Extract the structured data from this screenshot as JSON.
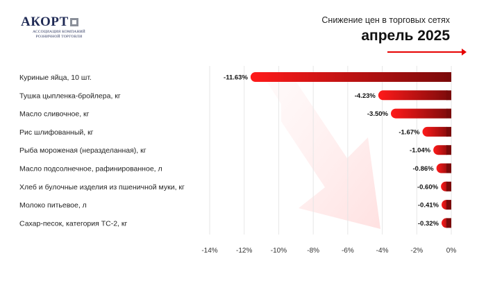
{
  "header": {
    "logo_text": "АКОРТ",
    "logo_subtitle_line1": "АССОЦИАЦИЯ КОМПАНИЙ",
    "logo_subtitle_line2": "РОЗНИЧНОЙ ТОРГОВЛИ",
    "subtitle": "Снижение цен в торговых сетях",
    "title": "апрель 2025"
  },
  "colors": {
    "bar_light": "#ff1a1a",
    "bar_dark": "#7a0a0a",
    "accent": "#e60000",
    "grid": "#e6e6e6"
  },
  "chart_data": {
    "type": "bar",
    "orientation": "horizontal",
    "title": "апрель 2025",
    "subtitle": "Снижение цен в торговых сетях",
    "categories": [
      "Куриные яйца, 10 шт.",
      "Тушка цыпленка-бройлера, кг",
      "Масло сливочное, кг",
      "Рис шлифованный, кг",
      "Рыба мороженая (неразделанная), кг",
      "Масло подсолнечное, рафинированное, л",
      "Хлеб и булочные изделия из пшеничной муки, кг",
      "Молоко питьевое, л",
      "Сахар-песок, категория ТС-2, кг"
    ],
    "values": [
      -11.63,
      -4.23,
      -3.5,
      -1.67,
      -1.04,
      -0.86,
      -0.6,
      -0.41,
      -0.32
    ],
    "value_labels": [
      "-11.63%",
      "-4.23%",
      "-3.50%",
      "-1.67%",
      "-1.04%",
      "-0.86%",
      "-0.60%",
      "-0.41%",
      "-0.32%"
    ],
    "x_ticks": [
      -14,
      -12,
      -10,
      -8,
      -6,
      -4,
      -2,
      0
    ],
    "x_tick_labels": [
      "-14%",
      "-12%",
      "-10%",
      "-8%",
      "-6%",
      "-4%",
      "-2%",
      "0%"
    ],
    "xlim": [
      -14,
      0
    ],
    "grid": true,
    "xlabel": "",
    "ylabel": ""
  }
}
